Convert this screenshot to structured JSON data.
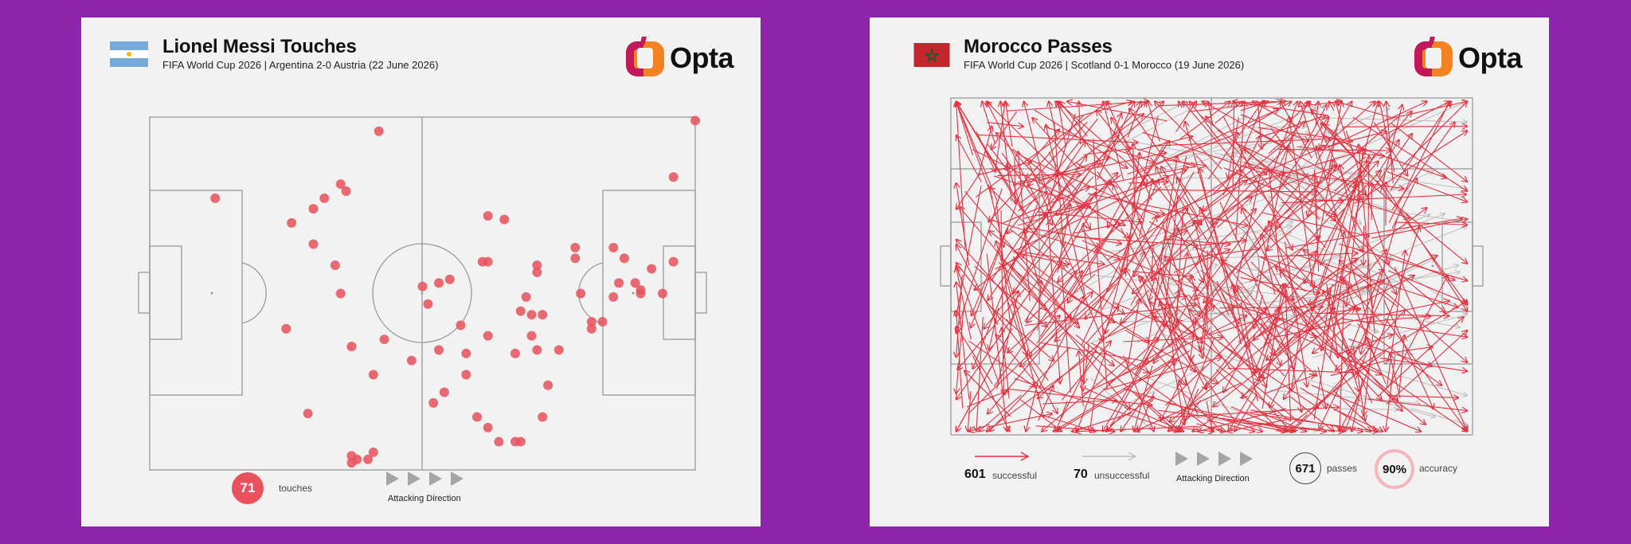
{
  "colors": {
    "background": "#8e24aa",
    "panel": "#f2f2f2",
    "touch": "#e8515d",
    "successful_pass": "#e8303f",
    "unsuccessful_pass": "#bdbdbd",
    "pitch_lines": "#9a9a9a",
    "brand_orange": "#f58220",
    "brand_magenta": "#c2185b"
  },
  "left": {
    "title": "Lionel Messi Touches",
    "subtitle": "FIFA World Cup 2026 | Argentina 2-0 Austria (22 June 2026)",
    "brand": "Opta",
    "flag_icon": "argentina-flag-icon",
    "touches_count": "71",
    "touches_label": "touches",
    "direction_label": "Attacking Direction"
  },
  "right": {
    "title": "Morocco Passes",
    "subtitle": "FIFA World Cup 2026 | Scotland 0-1 Morocco (19 June 2026)",
    "brand": "Opta",
    "flag_icon": "morocco-flag-icon",
    "successful_count": "601",
    "successful_label": "successful",
    "unsuccessful_count": "70",
    "unsuccessful_label": "unsuccessful",
    "direction_label": "Attacking Direction",
    "passes_count": "671",
    "passes_label": "passes",
    "accuracy_value": "90%",
    "accuracy_label": "accuracy"
  },
  "chart_data": [
    {
      "type": "scatter",
      "title": "Lionel Messi Touches",
      "subtitle": "FIFA World Cup 2026 | Argentina 2-0 Austria (22 June 2026)",
      "xlim": [
        0,
        100
      ],
      "ylim": [
        0,
        100
      ],
      "attacking_direction": "left-to-right",
      "total": 71,
      "points": [
        [
          42,
          96
        ],
        [
          100,
          99
        ],
        [
          12,
          77
        ],
        [
          96,
          83
        ],
        [
          26,
          70
        ],
        [
          30,
          74
        ],
        [
          32,
          77
        ],
        [
          35,
          81
        ],
        [
          36,
          79
        ],
        [
          30,
          64
        ],
        [
          34,
          58
        ],
        [
          35,
          50
        ],
        [
          25,
          40
        ],
        [
          37,
          35
        ],
        [
          43,
          37
        ],
        [
          41,
          27
        ],
        [
          48,
          31
        ],
        [
          50,
          52
        ],
        [
          51,
          47
        ],
        [
          53,
          53
        ],
        [
          55,
          54
        ],
        [
          62,
          72
        ],
        [
          65,
          71
        ],
        [
          61,
          59
        ],
        [
          62,
          59
        ],
        [
          71,
          58
        ],
        [
          71,
          56
        ],
        [
          69,
          49
        ],
        [
          68,
          45
        ],
        [
          70,
          44
        ],
        [
          72,
          44
        ],
        [
          57,
          41
        ],
        [
          62,
          38
        ],
        [
          58,
          33
        ],
        [
          53,
          34
        ],
        [
          70,
          38
        ],
        [
          71,
          34
        ],
        [
          67,
          33
        ],
        [
          75,
          34
        ],
        [
          73,
          24
        ],
        [
          58,
          27
        ],
        [
          54,
          22
        ],
        [
          52,
          19
        ],
        [
          72,
          15
        ],
        [
          60,
          15
        ],
        [
          62,
          12
        ],
        [
          67,
          8
        ],
        [
          64,
          8
        ],
        [
          68,
          8
        ],
        [
          78,
          63
        ],
        [
          78,
          60
        ],
        [
          79,
          50
        ],
        [
          81,
          40
        ],
        [
          81,
          42
        ],
        [
          83,
          42
        ],
        [
          85,
          63
        ],
        [
          87,
          60
        ],
        [
          85,
          49
        ],
        [
          86,
          53
        ],
        [
          89,
          53
        ],
        [
          90,
          51
        ],
        [
          90,
          50
        ],
        [
          92,
          57
        ],
        [
          94,
          50
        ],
        [
          96,
          59
        ],
        [
          29,
          16
        ],
        [
          37,
          2
        ],
        [
          37,
          4
        ],
        [
          38,
          3
        ],
        [
          40,
          3
        ],
        [
          41,
          5
        ]
      ]
    },
    {
      "type": "pass-map",
      "title": "Morocco Passes",
      "subtitle": "FIFA World Cup 2026 | Scotland 0-1 Morocco (19 June 2026)",
      "xlim": [
        0,
        100
      ],
      "ylim": [
        0,
        100
      ],
      "attacking_direction": "left-to-right",
      "series": [
        {
          "name": "successful",
          "count": 601
        },
        {
          "name": "unsuccessful",
          "count": 70
        }
      ],
      "total_passes": 671,
      "accuracy_percent": 90
    }
  ]
}
